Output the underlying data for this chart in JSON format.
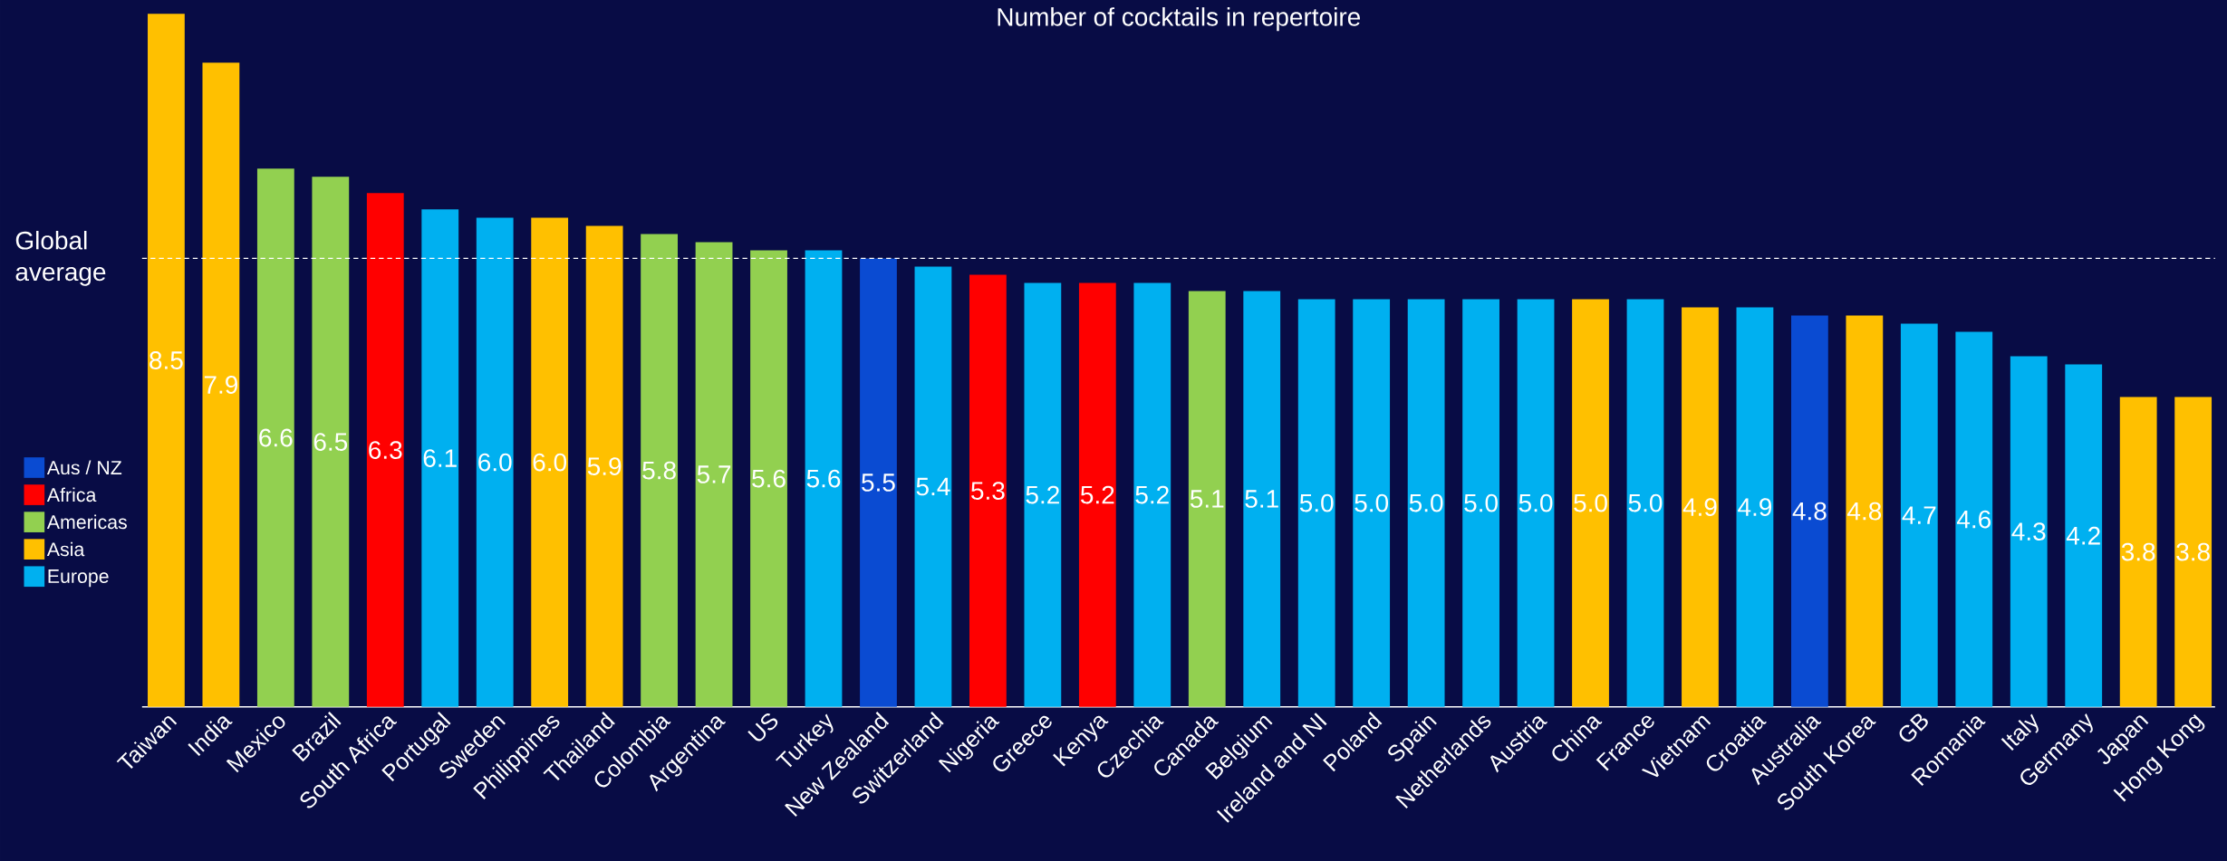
{
  "chart_data": {
    "type": "bar",
    "title": "Number of cocktails in repertoire",
    "categories": [
      "Taiwan",
      "India",
      "Mexico",
      "Brazil",
      "South Africa",
      "Portugal",
      "Sweden",
      "Philippines",
      "Thailand",
      "Colombia",
      "Argentina",
      "US",
      "Turkey",
      "New Zealand",
      "Switzerland",
      "Nigeria",
      "Greece",
      "Kenya",
      "Czechia",
      "Canada",
      "Belgium",
      "Ireland and NI",
      "Poland",
      "Spain",
      "Netherlands",
      "Austria",
      "China",
      "France",
      "Vietnam",
      "Croatia",
      "Australia",
      "South Korea",
      "GB",
      "Romania",
      "Italy",
      "Germany",
      "Japan",
      "Hong Kong"
    ],
    "series": [
      {
        "name": "Aus / NZ",
        "color": "#0a4bd2",
        "values": [
          null,
          null,
          null,
          null,
          null,
          null,
          null,
          null,
          null,
          null,
          null,
          null,
          null,
          5.5,
          null,
          null,
          null,
          null,
          null,
          null,
          null,
          null,
          null,
          null,
          null,
          null,
          null,
          null,
          null,
          null,
          4.8,
          null,
          null,
          null,
          null,
          null,
          null,
          null
        ],
        "value_labels": [
          null,
          null,
          null,
          null,
          null,
          null,
          null,
          null,
          null,
          null,
          null,
          null,
          null,
          "5.5",
          null,
          null,
          null,
          null,
          null,
          null,
          null,
          null,
          null,
          null,
          null,
          null,
          null,
          null,
          null,
          null,
          "4.8",
          null,
          null,
          null,
          null,
          null,
          null,
          null
        ]
      },
      {
        "name": "Africa",
        "color": "#ff0000",
        "values": [
          null,
          null,
          null,
          null,
          6.3,
          null,
          null,
          null,
          null,
          null,
          null,
          null,
          null,
          null,
          null,
          5.3,
          null,
          5.2,
          null,
          null,
          null,
          null,
          null,
          null,
          null,
          null,
          null,
          null,
          null,
          null,
          null,
          null,
          null,
          null,
          null,
          null,
          null,
          null
        ],
        "value_labels": [
          null,
          null,
          null,
          null,
          "6.3",
          null,
          null,
          null,
          null,
          null,
          null,
          null,
          null,
          null,
          null,
          "5.3",
          null,
          "5.2",
          null,
          null,
          null,
          null,
          null,
          null,
          null,
          null,
          null,
          null,
          null,
          null,
          null,
          null,
          null,
          null,
          null,
          null,
          null,
          null
        ]
      },
      {
        "name": "Americas",
        "color": "#92d050",
        "values": [
          null,
          null,
          6.6,
          6.5,
          null,
          null,
          null,
          null,
          null,
          5.8,
          5.7,
          5.6,
          null,
          null,
          null,
          null,
          null,
          null,
          null,
          5.1,
          null,
          null,
          null,
          null,
          null,
          null,
          null,
          null,
          null,
          null,
          null,
          null,
          null,
          null,
          null,
          null,
          null,
          null
        ],
        "value_labels": [
          null,
          null,
          "6.6",
          "6.5",
          null,
          null,
          null,
          null,
          null,
          "5.8",
          "5.7",
          "5.6",
          null,
          null,
          null,
          null,
          null,
          null,
          null,
          "5.1",
          null,
          null,
          null,
          null,
          null,
          null,
          null,
          null,
          null,
          null,
          null,
          null,
          null,
          null,
          null,
          null,
          null,
          null
        ]
      },
      {
        "name": "Asia",
        "color": "#ffc000",
        "values": [
          8.5,
          7.9,
          null,
          null,
          null,
          null,
          null,
          6.0,
          5.9,
          null,
          null,
          null,
          null,
          null,
          null,
          null,
          null,
          null,
          null,
          null,
          null,
          null,
          null,
          null,
          null,
          null,
          5.0,
          null,
          4.9,
          null,
          null,
          4.8,
          null,
          null,
          null,
          null,
          3.8,
          3.8
        ],
        "value_labels": [
          "8.5",
          "7.9",
          null,
          null,
          null,
          null,
          null,
          "6.0",
          "5.9",
          null,
          null,
          null,
          null,
          null,
          null,
          null,
          null,
          null,
          null,
          null,
          null,
          null,
          null,
          null,
          null,
          null,
          "5.0",
          null,
          "4.9",
          null,
          null,
          "4.8",
          null,
          null,
          null,
          null,
          "3.8",
          "3.8"
        ]
      },
      {
        "name": "Europe",
        "color": "#00b0f0",
        "values": [
          null,
          null,
          null,
          null,
          null,
          6.1,
          6.0,
          null,
          null,
          null,
          null,
          null,
          5.6,
          null,
          5.4,
          null,
          5.2,
          null,
          5.2,
          null,
          5.1,
          5.0,
          5.0,
          5.0,
          5.0,
          5.0,
          null,
          5.0,
          null,
          4.9,
          null,
          null,
          4.7,
          4.6,
          4.3,
          4.2,
          null,
          null
        ],
        "value_labels": [
          null,
          null,
          null,
          null,
          null,
          "6.1",
          "6.0",
          null,
          null,
          null,
          null,
          null,
          "5.6",
          null,
          "5.4",
          null,
          "5.2",
          null,
          "5.2",
          null,
          "5.1",
          "5.0",
          "5.0",
          "5.0",
          "5.0",
          "5.0",
          null,
          "5.0",
          null,
          "4.9",
          null,
          null,
          "4.7",
          "4.6",
          "4.3",
          "4.2",
          null,
          null
        ]
      }
    ],
    "legend": "left",
    "ref_lines": [
      {
        "axis": "y",
        "value": 5.5,
        "label": "Global average",
        "line_style": "dashed",
        "color": "#ffffff"
      }
    ]
  }
}
